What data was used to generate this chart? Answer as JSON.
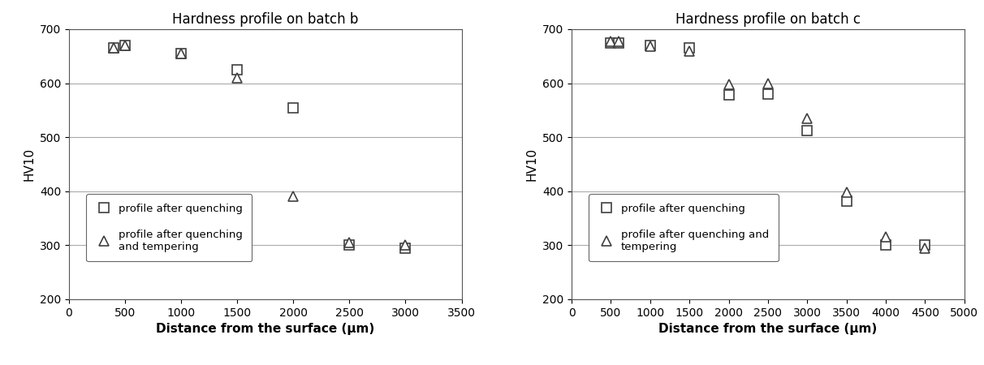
{
  "batch_b": {
    "title": "Hardness profile on batch b",
    "xlabel": "Distance from the surface (μm)",
    "ylabel": "HV10",
    "xlim": [
      0,
      3500
    ],
    "ylim": [
      200,
      700
    ],
    "xticks": [
      0,
      500,
      1000,
      1500,
      2000,
      2500,
      3000,
      3500
    ],
    "yticks": [
      200,
      300,
      400,
      500,
      600,
      700
    ],
    "quench_x": [
      400,
      500,
      1000,
      1500,
      2000,
      2500,
      3000
    ],
    "quench_y": [
      665,
      670,
      655,
      625,
      555,
      300,
      295
    ],
    "temper_x": [
      400,
      500,
      1000,
      1500,
      2000,
      2500,
      3000
    ],
    "temper_y": [
      665,
      670,
      655,
      610,
      390,
      305,
      300
    ]
  },
  "batch_c": {
    "title": "Hardness profile on batch c",
    "xlabel": "Distance from the surface (μm)",
    "ylabel": "HV10",
    "xlim": [
      0,
      5000
    ],
    "ylim": [
      200,
      700
    ],
    "xticks": [
      0,
      500,
      1000,
      1500,
      2000,
      2500,
      3000,
      3500,
      4000,
      4500,
      5000
    ],
    "yticks": [
      200,
      300,
      400,
      500,
      600,
      700
    ],
    "quench_x": [
      500,
      600,
      1000,
      1500,
      2000,
      2500,
      3000,
      3500,
      4000,
      4500
    ],
    "quench_y": [
      675,
      675,
      670,
      665,
      578,
      580,
      512,
      382,
      300,
      300
    ],
    "temper_x": [
      500,
      600,
      1000,
      1500,
      2000,
      2500,
      3000,
      3500,
      4000,
      4500
    ],
    "temper_y": [
      678,
      678,
      668,
      660,
      598,
      600,
      535,
      398,
      315,
      295
    ]
  },
  "legend_label_quench": "profile after quenching",
  "legend_label_temper_b": "profile after quenching\nand tempering",
  "legend_label_temper_c": "profile after quenching and\ntempering",
  "marker_color": "#404040",
  "marker_size": 8,
  "grid_color": "#aaaaaa",
  "background_color": "#ffffff",
  "title_fontsize": 12,
  "label_fontsize": 11,
  "tick_fontsize": 10,
  "legend_fontsize": 9.5
}
